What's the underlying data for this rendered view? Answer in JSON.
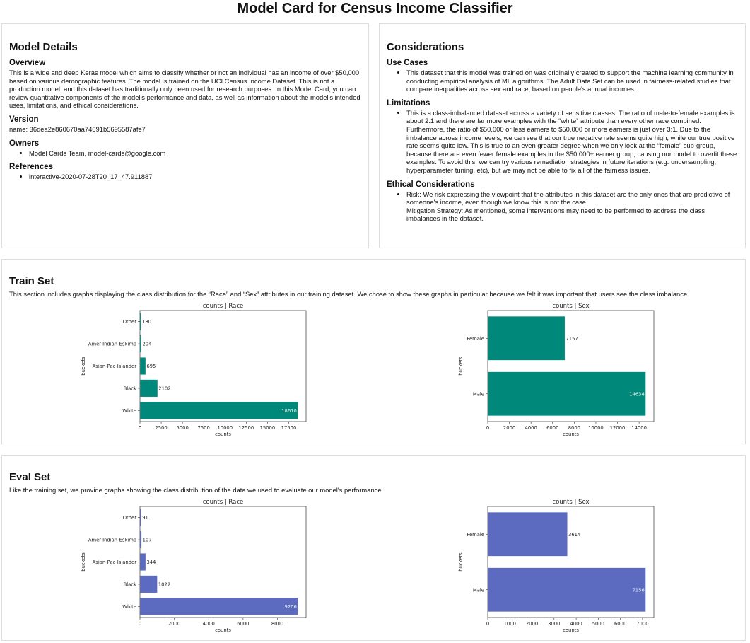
{
  "title": "Model Card for Census Income Classifier",
  "model_details": {
    "heading": "Model Details",
    "overview_heading": "Overview",
    "overview": "This is a wide and deep Keras model which aims to classify whether or not an individual has an income of over $50,000 based on various demographic features. The model is trained on the UCI Census Income Dataset. This is not a production model, and this dataset has traditionally only been used for research purposes. In this Model Card, you can review quantitative components of the model's performance and data, as well as information about the model's intended uses, limitations, and ethical considerations.",
    "version_heading": "Version",
    "version": "name: 36dea2e860670aa74691b5695587afe7",
    "owners_heading": "Owners",
    "owners": [
      "Model Cards Team, model-cards@google.com"
    ],
    "references_heading": "References",
    "references": [
      "interactive-2020-07-28T20_17_47.911887"
    ]
  },
  "considerations": {
    "heading": "Considerations",
    "use_cases_heading": "Use Cases",
    "use_cases": [
      "This dataset that this model was trained on was originally created to support the machine learning community in conducting empirical analysis of ML algorithms. The Adult Data Set can be used in fairness-related studies that compare inequalities across sex and race, based on people's annual incomes."
    ],
    "limitations_heading": "Limitations",
    "limitations": [
      "This is a class-imbalanced dataset across a variety of sensitive classes. The ratio of male-to-female examples is about 2:1 and there are far more examples with the “white” attribute than every other race combined. Furthermore, the ratio of $50,000 or less earners to $50,000 or more earners is just over 3:1. Due to the imbalance across income levels, we can see that our true negative rate seems quite high, while our true positive rate seems quite low. This is true to an even greater degree when we only look at the “female” sub-group, because there are even fewer female examples in the $50,000+ earner group, causing our model to overfit these examples. To avoid this, we can try various remediation strategies in future iterations (e.g. undersampling, hyperparameter tuning, etc), but we may not be able to fix all of the fairness issues."
    ],
    "ethical_heading": "Ethical Considerations",
    "ethical_risk": "Risk: We risk expressing the viewpoint that the attributes in this dataset are the only ones that are predictive of someone's income, even though we know this is not the case.",
    "ethical_mitigation": "Mitigation Strategy: As mentioned, some interventions may need to be performed to address the class imbalances in the dataset."
  },
  "train": {
    "heading": "Train Set",
    "description": "This section includes graphs displaying the class distribution for the “Race” and “Sex” attributes in our training dataset. We chose to show these graphs in particular because we felt it was important that users see the class imbalance."
  },
  "eval": {
    "heading": "Eval Set",
    "description": "Like the training set, we provide graphs showing the class distribution of the data we used to evaluate our model's performance."
  },
  "chart_data": [
    {
      "type": "bar",
      "orientation": "horizontal",
      "title": "counts | Race",
      "xlabel": "counts",
      "ylabel": "buckets",
      "color": "#00897b",
      "categories": [
        "White",
        "Black",
        "Asian-Pac-Islander",
        "Amer-Indian-Eskimo",
        "Other"
      ],
      "values": [
        18610,
        2102,
        695,
        204,
        180
      ],
      "xlim": [
        0,
        19540
      ],
      "xticks": [
        0,
        2500,
        5000,
        7500,
        10000,
        12500,
        15000,
        17500
      ]
    },
    {
      "type": "bar",
      "orientation": "horizontal",
      "title": "counts | Sex",
      "xlabel": "counts",
      "ylabel": "buckets",
      "color": "#00897b",
      "categories": [
        "Male",
        "Female"
      ],
      "values": [
        14634,
        7157
      ],
      "xlim": [
        0,
        15366
      ],
      "xticks": [
        0,
        2000,
        4000,
        6000,
        8000,
        10000,
        12000,
        14000
      ]
    },
    {
      "type": "bar",
      "orientation": "horizontal",
      "title": "counts | Race",
      "xlabel": "counts",
      "ylabel": "buckets",
      "color": "#5c6bc0",
      "categories": [
        "White",
        "Black",
        "Asian-Pac-Islander",
        "Amer-Indian-Eskimo",
        "Other"
      ],
      "values": [
        9206,
        1022,
        344,
        107,
        91
      ],
      "xlim": [
        0,
        9666
      ],
      "xticks": [
        0,
        2000,
        4000,
        6000,
        8000
      ]
    },
    {
      "type": "bar",
      "orientation": "horizontal",
      "title": "counts | Sex",
      "xlabel": "counts",
      "ylabel": "buckets",
      "color": "#5c6bc0",
      "categories": [
        "Male",
        "Female"
      ],
      "values": [
        7156,
        3614
      ],
      "xlim": [
        0,
        7514
      ],
      "xticks": [
        0,
        1000,
        2000,
        3000,
        4000,
        5000,
        6000,
        7000
      ]
    }
  ]
}
